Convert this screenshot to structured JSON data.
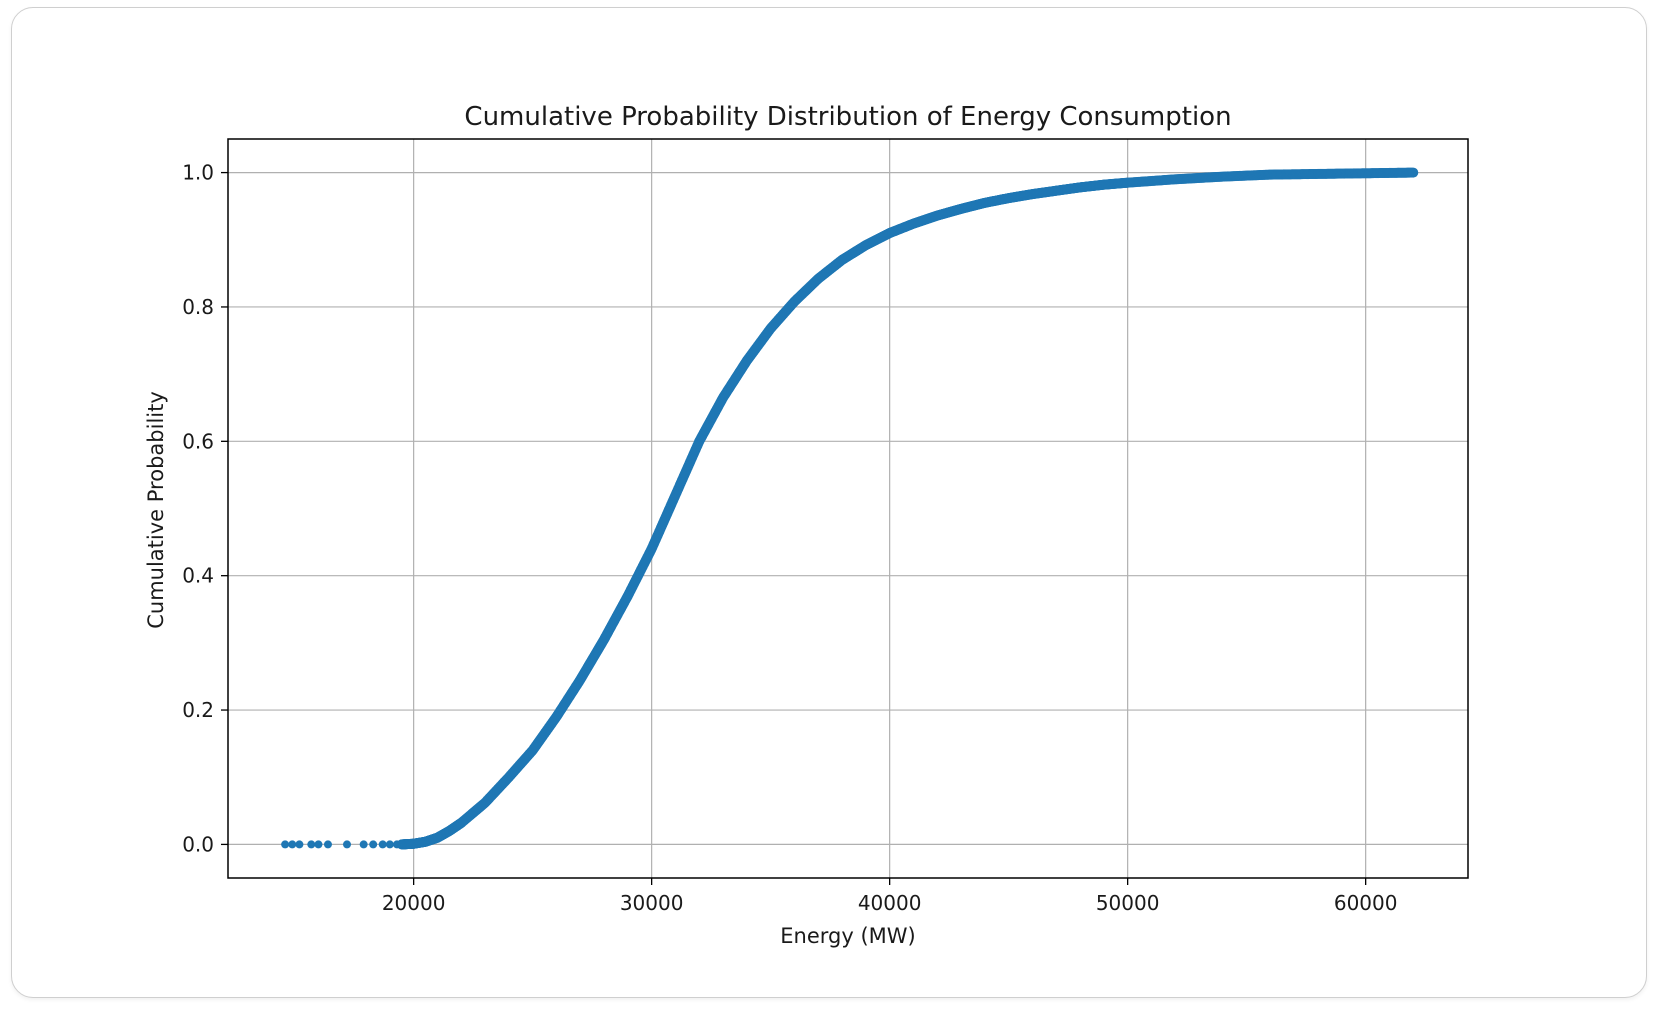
{
  "chart_data": {
    "type": "scatter",
    "title": "Cumulative Probability Distribution of Energy Consumption",
    "xlabel": "Energy (MW)",
    "ylabel": "Cumulative Probability",
    "xlim": [
      12200,
      64300
    ],
    "ylim": [
      -0.05,
      1.05
    ],
    "xticks": [
      20000,
      30000,
      40000,
      50000,
      60000
    ],
    "yticks": [
      0.0,
      0.2,
      0.4,
      0.6,
      0.8,
      1.0
    ],
    "xtick_labels": [
      "20000",
      "30000",
      "40000",
      "50000",
      "60000"
    ],
    "ytick_labels": [
      "0.0",
      "0.2",
      "0.4",
      "0.6",
      "0.8",
      "1.0"
    ],
    "grid": true,
    "marker_color": "#1f77b4",
    "outlier_points": {
      "x": [
        14600,
        14900,
        15200,
        15700,
        16000,
        16400,
        17200,
        17900,
        18300,
        18700,
        19000,
        19300
      ],
      "y": [
        0.0,
        0.0,
        0.0,
        0.0,
        0.0,
        0.0,
        0.0,
        0.0,
        0.0,
        0.0,
        0.0,
        0.0
      ]
    },
    "curve_points": {
      "x": [
        19500,
        20000,
        20500,
        21000,
        21500,
        22000,
        23000,
        24000,
        25000,
        26000,
        27000,
        28000,
        29000,
        30000,
        31000,
        32000,
        33000,
        34000,
        35000,
        36000,
        37000,
        38000,
        39000,
        40000,
        41000,
        42000,
        43000,
        44000,
        45000,
        46000,
        47000,
        48000,
        49000,
        50000,
        52000,
        54000,
        56000,
        58000,
        60000,
        62000
      ],
      "y": [
        0.0,
        0.001,
        0.004,
        0.01,
        0.02,
        0.032,
        0.062,
        0.1,
        0.14,
        0.19,
        0.245,
        0.305,
        0.37,
        0.44,
        0.52,
        0.6,
        0.665,
        0.72,
        0.768,
        0.808,
        0.842,
        0.87,
        0.892,
        0.91,
        0.924,
        0.936,
        0.946,
        0.955,
        0.962,
        0.968,
        0.973,
        0.978,
        0.982,
        0.985,
        0.99,
        0.994,
        0.997,
        0.998,
        0.999,
        1.0
      ]
    }
  }
}
